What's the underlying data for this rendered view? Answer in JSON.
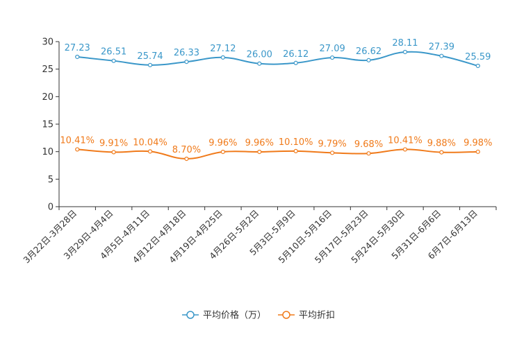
{
  "chart_data": {
    "type": "line",
    "title": "",
    "xlabel": "",
    "ylabel": "",
    "ylim": [
      0,
      30
    ],
    "yticks": [
      "0",
      "5",
      "10",
      "15",
      "20",
      "25",
      "30"
    ],
    "grid": false,
    "legend_position": "bottom",
    "categories": [
      "3月22日-3月28日",
      "3月29日-4月4日",
      "4月5日-4月11日",
      "4月12日-4月18日",
      "4月19日-4月25日",
      "4月26日-5月2日",
      "5月3日-5月9日",
      "5月10日-5月16日",
      "5月17日-5月23日",
      "5月24日-5月30日",
      "5月31日-6月6日",
      "6月7日-6月13日"
    ],
    "series": [
      {
        "name": "平均价格（万）",
        "color": "#3a97c9",
        "values": [
          27.23,
          26.51,
          25.74,
          26.33,
          27.12,
          26.0,
          26.12,
          27.09,
          26.62,
          28.11,
          27.39,
          25.59
        ],
        "labels": [
          "27.23",
          "26.51",
          "25.74",
          "26.33",
          "27.12",
          "26.00",
          "26.12",
          "27.09",
          "26.62",
          "28.11",
          "27.39",
          "25.59"
        ]
      },
      {
        "name": "平均折扣",
        "color": "#f07a1a",
        "values": [
          10.41,
          9.91,
          10.04,
          8.7,
          9.96,
          9.96,
          10.1,
          9.79,
          9.68,
          10.41,
          9.88,
          9.98
        ],
        "labels": [
          "10.41%",
          "9.91%",
          "10.04%",
          "8.70%",
          "9.96%",
          "9.96%",
          "10.10%",
          "9.79%",
          "9.68%",
          "10.41%",
          "9.88%",
          "9.98%"
        ]
      }
    ]
  }
}
